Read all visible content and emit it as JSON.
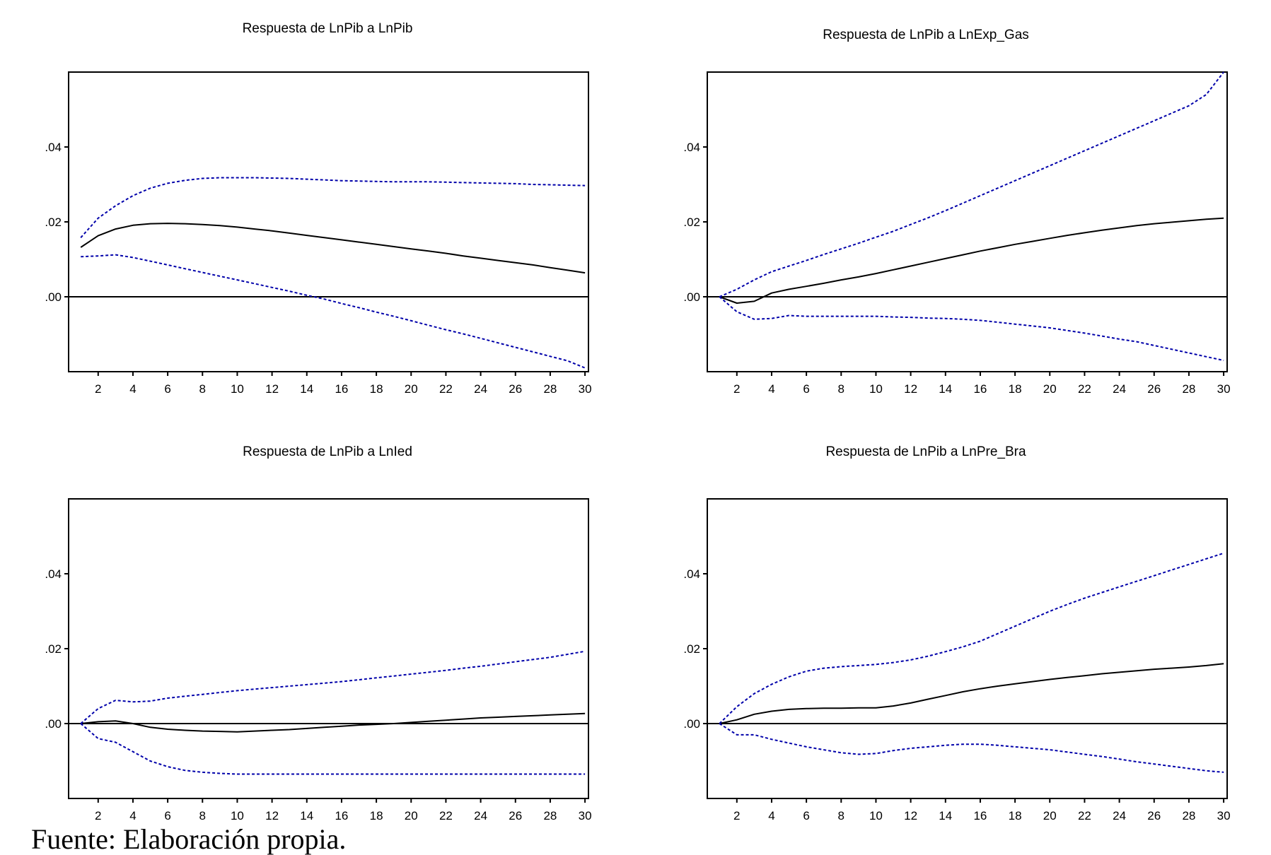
{
  "chart_data": [
    {
      "type": "line",
      "title": "Respuesta de LnPib a LnPib",
      "x": [
        1,
        2,
        3,
        4,
        5,
        6,
        7,
        8,
        9,
        10,
        11,
        12,
        13,
        14,
        15,
        16,
        17,
        18,
        19,
        20,
        21,
        22,
        23,
        24,
        25,
        26,
        27,
        28,
        29,
        30
      ],
      "xticks": [
        "2",
        "4",
        "6",
        "8",
        "10",
        "12",
        "14",
        "16",
        "18",
        "20",
        "22",
        "24",
        "26",
        "28",
        "30"
      ],
      "yticks": [
        ".04",
        ".02",
        ".00"
      ],
      "ylim": [
        -0.02,
        0.06
      ],
      "xlim": [
        0.3,
        30.2
      ],
      "zero_line": true,
      "series": [
        {
          "color": "#000000",
          "style": "solid",
          "values": [
            0.0132,
            0.0163,
            0.0181,
            0.0191,
            0.0195,
            0.0196,
            0.0195,
            0.0193,
            0.019,
            0.0186,
            0.0181,
            0.0176,
            0.017,
            0.0164,
            0.0158,
            0.0152,
            0.0146,
            0.014,
            0.0134,
            0.0128,
            0.0122,
            0.0116,
            0.0109,
            0.0103,
            0.0097,
            0.0091,
            0.0085,
            0.0078,
            0.0071,
            0.0064
          ]
        },
        {
          "color": "#0000aa",
          "style": "dotted",
          "values": [
            0.0158,
            0.021,
            0.0243,
            0.027,
            0.029,
            0.0303,
            0.0311,
            0.0316,
            0.0318,
            0.0318,
            0.0318,
            0.0317,
            0.0316,
            0.0314,
            0.0312,
            0.031,
            0.0309,
            0.0308,
            0.0307,
            0.0307,
            0.0307,
            0.0306,
            0.0305,
            0.0304,
            0.0303,
            0.0302,
            0.03,
            0.0299,
            0.0298,
            0.0297
          ]
        },
        {
          "color": "#0000aa",
          "style": "dotted",
          "values": [
            0.0107,
            0.0109,
            0.0112,
            0.0105,
            0.0095,
            0.0085,
            0.0075,
            0.0065,
            0.0055,
            0.0045,
            0.0035,
            0.0025,
            0.0015,
            0.0004,
            -0.0006,
            -0.0018,
            -0.0029,
            -0.0041,
            -0.0052,
            -0.0064,
            -0.0076,
            -0.0088,
            -0.0099,
            -0.0111,
            -0.0123,
            -0.0135,
            -0.0147,
            -0.0159,
            -0.0171,
            -0.019
          ]
        }
      ]
    },
    {
      "type": "line",
      "title": "Respuesta de LnPib a LnExp_Gas",
      "x": [
        1,
        2,
        3,
        4,
        5,
        6,
        7,
        8,
        9,
        10,
        11,
        12,
        13,
        14,
        15,
        16,
        17,
        18,
        19,
        20,
        21,
        22,
        23,
        24,
        25,
        26,
        27,
        28,
        29,
        30
      ],
      "xticks": [
        "2",
        "4",
        "6",
        "8",
        "10",
        "12",
        "14",
        "16",
        "18",
        "20",
        "22",
        "24",
        "26",
        "28",
        "30"
      ],
      "yticks": [
        ".04",
        ".02",
        ".00"
      ],
      "ylim": [
        -0.02,
        0.06
      ],
      "xlim": [
        0.3,
        30.2
      ],
      "zero_line": true,
      "series": [
        {
          "color": "#000000",
          "style": "solid",
          "values": [
            0.0,
            -0.0017,
            -0.0012,
            0.001,
            0.002,
            0.0028,
            0.0036,
            0.0045,
            0.0053,
            0.0062,
            0.0072,
            0.0082,
            0.0092,
            0.0102,
            0.0112,
            0.0122,
            0.0131,
            0.014,
            0.0148,
            0.0156,
            0.0164,
            0.0171,
            0.0178,
            0.0184,
            0.019,
            0.0195,
            0.0199,
            0.0203,
            0.0207,
            0.021
          ]
        },
        {
          "color": "#0000aa",
          "style": "dotted",
          "values": [
            0.0,
            0.002,
            0.0045,
            0.0067,
            0.0082,
            0.0097,
            0.0113,
            0.0128,
            0.0143,
            0.0159,
            0.0175,
            0.0193,
            0.0211,
            0.023,
            0.025,
            0.027,
            0.029,
            0.031,
            0.033,
            0.035,
            0.037,
            0.039,
            0.041,
            0.043,
            0.045,
            0.047,
            0.049,
            0.051,
            0.054,
            0.06
          ]
        },
        {
          "color": "#0000aa",
          "style": "dotted",
          "values": [
            0.0,
            -0.004,
            -0.006,
            -0.0058,
            -0.005,
            -0.0052,
            -0.0052,
            -0.0052,
            -0.0052,
            -0.0052,
            -0.0054,
            -0.0055,
            -0.0057,
            -0.0058,
            -0.006,
            -0.0063,
            -0.0068,
            -0.0073,
            -0.0078,
            -0.0083,
            -0.009,
            -0.0097,
            -0.0105,
            -0.0113,
            -0.012,
            -0.013,
            -0.014,
            -0.015,
            -0.016,
            -0.017
          ]
        }
      ]
    },
    {
      "type": "line",
      "title": "Respuesta de  LnPib a LnIed",
      "x": [
        1,
        2,
        3,
        4,
        5,
        6,
        7,
        8,
        9,
        10,
        11,
        12,
        13,
        14,
        15,
        16,
        17,
        18,
        19,
        20,
        21,
        22,
        23,
        24,
        25,
        26,
        27,
        28,
        29,
        30
      ],
      "xticks": [
        "2",
        "4",
        "6",
        "8",
        "10",
        "12",
        "14",
        "16",
        "18",
        "20",
        "22",
        "24",
        "26",
        "28",
        "30"
      ],
      "yticks": [
        ".04",
        ".02",
        ".00"
      ],
      "ylim": [
        -0.02,
        0.06
      ],
      "xlim": [
        0.3,
        30.2
      ],
      "zero_line": true,
      "series": [
        {
          "color": "#000000",
          "style": "solid",
          "values": [
            0.0,
            0.0005,
            0.0007,
            0.0,
            -0.001,
            -0.0015,
            -0.0018,
            -0.002,
            -0.0021,
            -0.0022,
            -0.002,
            -0.0018,
            -0.0016,
            -0.0013,
            -0.001,
            -0.0007,
            -0.0004,
            -0.0002,
            0.0,
            0.0003,
            0.0006,
            0.0009,
            0.0012,
            0.0015,
            0.0017,
            0.0019,
            0.0021,
            0.0023,
            0.0025,
            0.0027
          ]
        },
        {
          "color": "#0000aa",
          "style": "dotted",
          "values": [
            0.0,
            0.004,
            0.0062,
            0.0058,
            0.006,
            0.0068,
            0.0073,
            0.0078,
            0.0083,
            0.0088,
            0.0092,
            0.0096,
            0.01,
            0.0104,
            0.0108,
            0.0112,
            0.0117,
            0.0122,
            0.0127,
            0.0132,
            0.0137,
            0.0142,
            0.0148,
            0.0153,
            0.0159,
            0.0165,
            0.0171,
            0.0177,
            0.0185,
            0.0193
          ]
        },
        {
          "color": "#0000aa",
          "style": "dotted",
          "values": [
            0.0,
            -0.004,
            -0.005,
            -0.0075,
            -0.01,
            -0.0115,
            -0.0125,
            -0.013,
            -0.0133,
            -0.0135,
            -0.0135,
            -0.0135,
            -0.0135,
            -0.0135,
            -0.0135,
            -0.0135,
            -0.0135,
            -0.0135,
            -0.0135,
            -0.0135,
            -0.0135,
            -0.0135,
            -0.0135,
            -0.0135,
            -0.0135,
            -0.0135,
            -0.0135,
            -0.0135,
            -0.0135,
            -0.0135
          ]
        }
      ]
    },
    {
      "type": "line",
      "title": "Respuesta de LnPib a LnPre_Bra",
      "x": [
        1,
        2,
        3,
        4,
        5,
        6,
        7,
        8,
        9,
        10,
        11,
        12,
        13,
        14,
        15,
        16,
        17,
        18,
        19,
        20,
        21,
        22,
        23,
        24,
        25,
        26,
        27,
        28,
        29,
        30
      ],
      "xticks": [
        "2",
        "4",
        "6",
        "8",
        "10",
        "12",
        "14",
        "16",
        "18",
        "20",
        "22",
        "24",
        "26",
        "28",
        "30"
      ],
      "yticks": [
        ".04",
        ".02",
        ".00"
      ],
      "ylim": [
        -0.02,
        0.06
      ],
      "xlim": [
        0.3,
        30.2
      ],
      "zero_line": true,
      "series": [
        {
          "color": "#000000",
          "style": "solid",
          "values": [
            0.0,
            0.001,
            0.0025,
            0.0033,
            0.0038,
            0.004,
            0.0041,
            0.0041,
            0.0042,
            0.0042,
            0.0047,
            0.0055,
            0.0065,
            0.0075,
            0.0085,
            0.0093,
            0.01,
            0.0106,
            0.0112,
            0.0118,
            0.0123,
            0.0128,
            0.0133,
            0.0137,
            0.0141,
            0.0145,
            0.0148,
            0.0151,
            0.0155,
            0.016
          ]
        },
        {
          "color": "#0000aa",
          "style": "dotted",
          "values": [
            0.0,
            0.0045,
            0.008,
            0.0105,
            0.0125,
            0.014,
            0.0148,
            0.0152,
            0.0155,
            0.0158,
            0.0163,
            0.017,
            0.018,
            0.0192,
            0.0205,
            0.022,
            0.024,
            0.026,
            0.028,
            0.03,
            0.0318,
            0.0335,
            0.035,
            0.0365,
            0.038,
            0.0395,
            0.041,
            0.0425,
            0.044,
            0.0455
          ]
        },
        {
          "color": "#0000aa",
          "style": "dotted",
          "values": [
            0.0,
            -0.003,
            -0.003,
            -0.0042,
            -0.0052,
            -0.0062,
            -0.007,
            -0.0078,
            -0.0082,
            -0.008,
            -0.0072,
            -0.0066,
            -0.0062,
            -0.0058,
            -0.0055,
            -0.0055,
            -0.0058,
            -0.0062,
            -0.0066,
            -0.007,
            -0.0076,
            -0.0082,
            -0.0088,
            -0.0095,
            -0.0102,
            -0.0108,
            -0.0114,
            -0.012,
            -0.0126,
            -0.013
          ]
        }
      ]
    }
  ],
  "source_note": "Fuente: Elaboración propia."
}
